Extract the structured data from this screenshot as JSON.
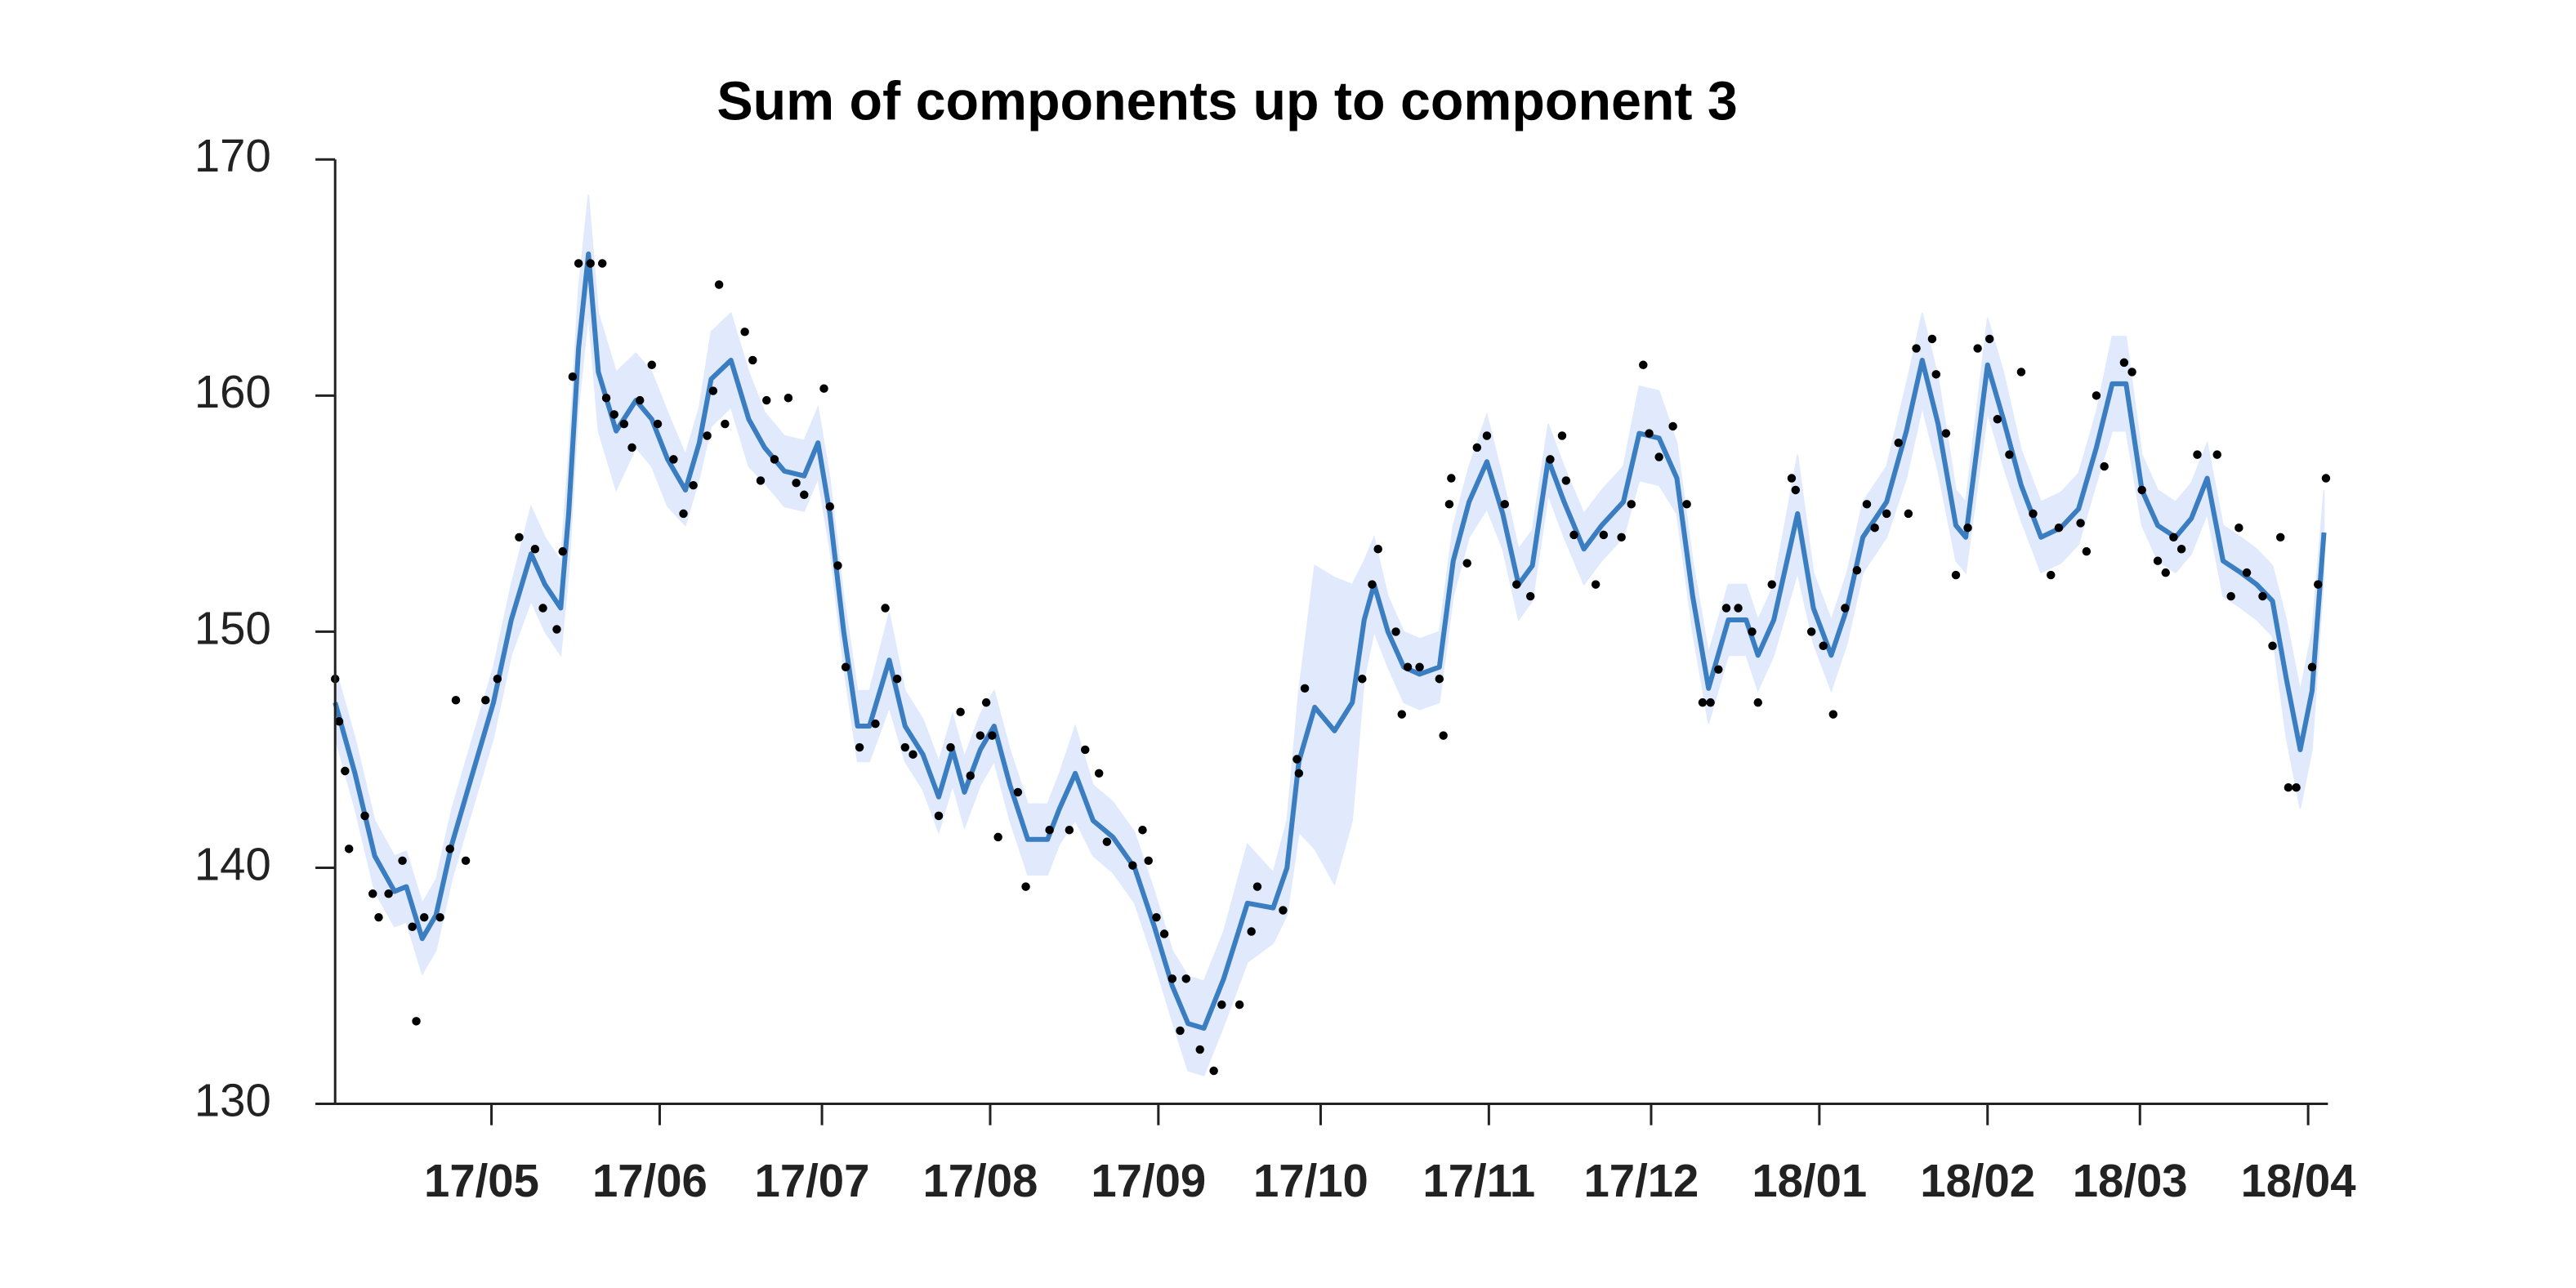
{
  "chart_data": {
    "type": "line",
    "title": "Sum of components up to component 3",
    "xlim": [
      2017.25,
      2018.257
    ],
    "xticks": [
      {
        "value": 2017.329,
        "label": "17/05"
      },
      {
        "value": 2017.414,
        "label": "17/06"
      },
      {
        "value": 2017.496,
        "label": "17/07"
      },
      {
        "value": 2017.581,
        "label": "17/08"
      },
      {
        "value": 2017.666,
        "label": "17/09"
      },
      {
        "value": 2017.748,
        "label": "17/10"
      },
      {
        "value": 2017.833,
        "label": "17/11"
      },
      {
        "value": 2017.915,
        "label": "17/12"
      },
      {
        "value": 2018.0,
        "label": "18/01"
      },
      {
        "value": 2018.085,
        "label": "18/02"
      },
      {
        "value": 2018.162,
        "label": "18/03"
      },
      {
        "value": 2018.247,
        "label": "18/04"
      }
    ],
    "ylim": [
      130,
      170
    ],
    "yticks": [
      130,
      140,
      150,
      160,
      170
    ],
    "line_color": "#3a7dc0",
    "band_color": "#e0eafc",
    "point_color": "#000000",
    "line_x": [
      2017.25,
      2017.26,
      2017.27,
      2017.28,
      2017.286,
      2017.294,
      2017.301,
      2017.309,
      2017.317,
      2017.33,
      2017.339,
      2017.349,
      2017.356,
      2017.364,
      2017.368,
      2017.373,
      2017.378,
      2017.383,
      2017.392,
      2017.402,
      2017.41,
      2017.418,
      2017.427,
      2017.434,
      2017.44,
      2017.45,
      2017.459,
      2017.467,
      2017.477,
      2017.487,
      2017.494,
      2017.5,
      2017.507,
      2017.514,
      2017.52,
      2017.53,
      2017.538,
      2017.547,
      2017.555,
      2017.562,
      2017.568,
      2017.576,
      2017.583,
      2017.591,
      2017.6,
      2017.61,
      2017.616,
      2017.624,
      2017.633,
      2017.643,
      2017.654,
      2017.664,
      2017.673,
      2017.681,
      2017.689,
      2017.699,
      2017.711,
      2017.724,
      2017.731,
      2017.737,
      2017.745,
      2017.755,
      2017.764,
      2017.77,
      2017.775,
      2017.782,
      2017.79,
      2017.798,
      2017.808,
      2017.815,
      2017.823,
      2017.832,
      2017.84,
      2017.848,
      2017.855,
      2017.863,
      2017.871,
      2017.881,
      2017.89,
      2017.901,
      2017.909,
      2017.919,
      2017.928,
      2017.936,
      2017.944,
      2017.954,
      2017.963,
      2017.969,
      2017.977,
      2017.989,
      2017.997,
      2018.006,
      2018.014,
      2018.022,
      2018.034,
      2018.044,
      2018.052,
      2018.06,
      2018.069,
      2018.074,
      2018.085,
      2018.093,
      2018.102,
      2018.112,
      2018.122,
      2018.131,
      2018.14,
      2018.148,
      2018.155,
      2018.163,
      2018.171,
      2018.18,
      2018.188,
      2018.196,
      2018.204,
      2018.213,
      2018.221,
      2018.229,
      2018.236,
      2018.243,
      2018.249,
      2018.255
    ],
    "line_values": [
      147,
      144,
      140.5,
      139,
      139.2,
      137,
      138,
      141,
      143.3,
      147,
      150.5,
      153.3,
      152,
      151,
      155,
      162,
      166,
      161,
      158.5,
      159.8,
      159,
      157.3,
      156,
      158,
      160.7,
      161.5,
      159,
      157.8,
      156.8,
      156.6,
      158,
      155,
      150,
      146,
      146,
      148.8,
      146,
      144.8,
      143,
      145,
      143.2,
      145,
      146,
      143.5,
      141.2,
      141.2,
      142.5,
      144,
      142,
      141.3,
      140,
      137.5,
      135,
      133.4,
      133.2,
      135.3,
      138.5,
      138.3,
      140,
      144.5,
      146.8,
      145.8,
      147,
      150.5,
      152,
      150,
      148.5,
      148.2,
      148.5,
      153,
      155.5,
      157.2,
      155,
      152,
      152.8,
      157.3,
      155.5,
      153.5,
      154.5,
      155.5,
      158.4,
      158.2,
      156.5,
      151.5,
      147.6,
      150.5,
      150.5,
      149,
      150.5,
      155,
      151,
      149,
      151,
      154,
      155.5,
      158.5,
      161.5,
      158.8,
      154.5,
      154,
      161.3,
      159,
      156.2,
      154,
      154.4,
      155.2,
      157.8,
      160.5,
      160.5,
      156,
      154.5,
      154,
      154.8,
      156.5,
      153,
      152.5,
      152,
      151.3,
      148,
      145,
      147.5,
      154.2
    ],
    "band_upper": [
      148.5,
      145.5,
      142,
      140.5,
      140.7,
      138.5,
      139.5,
      142.5,
      144.8,
      148.5,
      152,
      155.3,
      154,
      153,
      157.5,
      164.5,
      168.5,
      163.5,
      161,
      161.8,
      161,
      159.3,
      157.5,
      159.5,
      162.7,
      163.5,
      161,
      159.3,
      158.3,
      158.1,
      159.5,
      156.5,
      151.5,
      147.5,
      147.5,
      150.8,
      147.5,
      146.3,
      144.5,
      146.5,
      144.7,
      146.5,
      147.5,
      145,
      142.7,
      142.7,
      144,
      146,
      143.5,
      142.8,
      141.5,
      139,
      136.5,
      135.4,
      135.2,
      137.3,
      141,
      139.8,
      142,
      147.5,
      152.8,
      152.3,
      152,
      153,
      154,
      151.5,
      150,
      149.7,
      150,
      154.5,
      157,
      159.2,
      156.5,
      153.5,
      154.3,
      158.8,
      157,
      155,
      156,
      157,
      160.4,
      160.2,
      158,
      153,
      149.1,
      152,
      152,
      150.5,
      152,
      157.5,
      152.5,
      150.5,
      152.5,
      155.5,
      157,
      160.5,
      163.5,
      160.8,
      156,
      155.5,
      163.3,
      161,
      157.7,
      155.5,
      155.9,
      156.7,
      159.3,
      162.5,
      162.5,
      157.5,
      156,
      155.5,
      156.3,
      158,
      154.5,
      154,
      153.5,
      152.8,
      150.5,
      147.5,
      150,
      156
    ],
    "band_lower": [
      145.5,
      142.5,
      139,
      137.5,
      137.7,
      135.5,
      136.5,
      139.5,
      141.8,
      145.5,
      149,
      151.3,
      150,
      149,
      152.5,
      159.5,
      163.5,
      158.5,
      156,
      157.8,
      157,
      155.3,
      154.5,
      156.5,
      158.7,
      159.5,
      157,
      156.3,
      155.3,
      155.1,
      156.5,
      153.5,
      148.5,
      144.5,
      144.5,
      146.8,
      144.5,
      143.3,
      141.5,
      143.5,
      141.7,
      143.5,
      144.5,
      142,
      139.7,
      139.7,
      141,
      142,
      140.5,
      139.8,
      138.5,
      136,
      133.5,
      131.4,
      131.2,
      133.3,
      136,
      136.8,
      138,
      141.5,
      140.8,
      139.3,
      142,
      148,
      150,
      148.5,
      147,
      146.7,
      147,
      151.5,
      154,
      155.2,
      153.5,
      150.5,
      151.3,
      155.8,
      154,
      152,
      153,
      154,
      156.4,
      156.2,
      155,
      150,
      146.1,
      149,
      149,
      147.5,
      149,
      152.5,
      149.5,
      147.5,
      149.5,
      152.5,
      154,
      156.5,
      159.5,
      156.8,
      153,
      152.5,
      159.3,
      157,
      154.7,
      152.5,
      152.9,
      153.7,
      156.3,
      158.5,
      158.5,
      154.5,
      153,
      152.5,
      153.3,
      155,
      151.5,
      151,
      150.5,
      149.8,
      145.5,
      142.5,
      145,
      152.4
    ],
    "points_x": [
      2017.25,
      2017.252,
      2017.255,
      2017.257,
      2017.265,
      2017.269,
      2017.272,
      2017.277,
      2017.284,
      2017.289,
      2017.291,
      2017.295,
      2017.303,
      2017.308,
      2017.311,
      2017.316,
      2017.326,
      2017.332,
      2017.343,
      2017.351,
      2017.355,
      2017.362,
      2017.365,
      2017.37,
      2017.373,
      2017.379,
      2017.385,
      2017.387,
      2017.391,
      2017.396,
      2017.4,
      2017.404,
      2017.41,
      2017.413,
      2017.421,
      2017.426,
      2017.431,
      2017.438,
      2017.441,
      2017.444,
      2017.447,
      2017.457,
      2017.461,
      2017.465,
      2017.468,
      2017.472,
      2017.479,
      2017.483,
      2017.487,
      2017.497,
      2017.5,
      2017.504,
      2017.508,
      2017.515,
      2017.523,
      2017.528,
      2017.534,
      2017.538,
      2017.542,
      2017.555,
      2017.561,
      2017.566,
      2017.571,
      2017.576,
      2017.579,
      2017.582,
      2017.585,
      2017.595,
      2017.599,
      2017.611,
      2017.621,
      2017.629,
      2017.636,
      2017.64,
      2017.653,
      2017.658,
      2017.661,
      2017.665,
      2017.669,
      2017.673,
      2017.677,
      2017.68,
      2017.687,
      2017.694,
      2017.698,
      2017.707,
      2017.713,
      2017.716,
      2017.729,
      2017.736,
      2017.737,
      2017.74,
      2017.769,
      2017.774,
      2017.777,
      2017.786,
      2017.789,
      2017.792,
      2017.798,
      2017.808,
      2017.81,
      2017.813,
      2017.814,
      2017.822,
      2017.827,
      2017.832,
      2017.841,
      2017.847,
      2017.854,
      2017.864,
      2017.87,
      2017.872,
      2017.876,
      2017.887,
      2017.891,
      2017.9,
      2017.905,
      2017.911,
      2017.914,
      2017.919,
      2017.926,
      2017.933,
      2017.941,
      2017.945,
      2017.949,
      2017.953,
      2017.959,
      2017.966,
      2017.969,
      2017.976,
      2017.986,
      2017.988,
      2017.996,
      2018.002,
      2018.007,
      2018.013,
      2018.019,
      2018.024,
      2018.028,
      2018.034,
      2018.04,
      2018.045,
      2018.049,
      2018.057,
      2018.059,
      2018.064,
      2018.069,
      2018.075,
      2018.08,
      2018.086,
      2018.09,
      2018.096,
      2018.102,
      2018.108,
      2018.117,
      2018.121,
      2018.132,
      2018.135,
      2018.14,
      2018.144,
      2018.154,
      2018.158,
      2018.163,
      2018.171,
      2018.175,
      2018.179,
      2018.183,
      2018.191,
      2018.201,
      2018.208,
      2018.212,
      2018.216,
      2018.224,
      2018.229,
      2018.233,
      2018.237,
      2018.241,
      2018.249,
      2018.252,
      2018.256
    ],
    "points_values": [
      148,
      146.2,
      144.1,
      140.8,
      142.2,
      138.9,
      137.9,
      138.9,
      140.3,
      137.5,
      133.5,
      137.9,
      137.9,
      140.8,
      147.1,
      140.3,
      147.1,
      148,
      154,
      153.5,
      151,
      150.1,
      153.4,
      160.8,
      165.6,
      165.6,
      165.6,
      159.9,
      159.2,
      158.8,
      157.8,
      159.8,
      161.3,
      158.8,
      157.3,
      155,
      156.2,
      158.3,
      160.2,
      164.7,
      158.8,
      162.7,
      161.5,
      156.4,
      159.8,
      157.3,
      159.9,
      156.3,
      155.8,
      160.3,
      155.3,
      152.8,
      148.5,
      145.1,
      146.1,
      151,
      148,
      145.1,
      144.8,
      142.2,
      145.1,
      146.6,
      143.9,
      145.6,
      147,
      145.6,
      141.3,
      143.2,
      139.2,
      141.6,
      141.6,
      145,
      144,
      141.1,
      140.1,
      141.6,
      140.3,
      137.9,
      137.2,
      135.3,
      133.1,
      135.3,
      132.3,
      131.4,
      134.2,
      134.2,
      137.3,
      139.2,
      138.2,
      144.6,
      144,
      147.6,
      148,
      152,
      153.5,
      150,
      146.5,
      148.5,
      148.5,
      148,
      145.6,
      155.4,
      156.5,
      152.9,
      157.8,
      158.3,
      155.4,
      152,
      151.5,
      157.3,
      158.3,
      156.4,
      154.1,
      152,
      154.1,
      154,
      155.4,
      161.3,
      158.4,
      157.4,
      158.7,
      155.4,
      147,
      147,
      148.4,
      151,
      151,
      150,
      147,
      152,
      156.5,
      156,
      150,
      149.4,
      146.5,
      151,
      152.6,
      155.4,
      154.4,
      155,
      158,
      155,
      162,
      162.4,
      160.9,
      158.4,
      152.4,
      154.4,
      162,
      162.4,
      159,
      157.5,
      161,
      155,
      152.4,
      154.4,
      154.6,
      153.4,
      160,
      157,
      161.4,
      161,
      156,
      153,
      152.5,
      154,
      153.5,
      157.5,
      157.5,
      151.5,
      154.4,
      152.5,
      151.5,
      149.4,
      154,
      143.4,
      143.4,
      148.5,
      152,
      156.5
    ]
  }
}
